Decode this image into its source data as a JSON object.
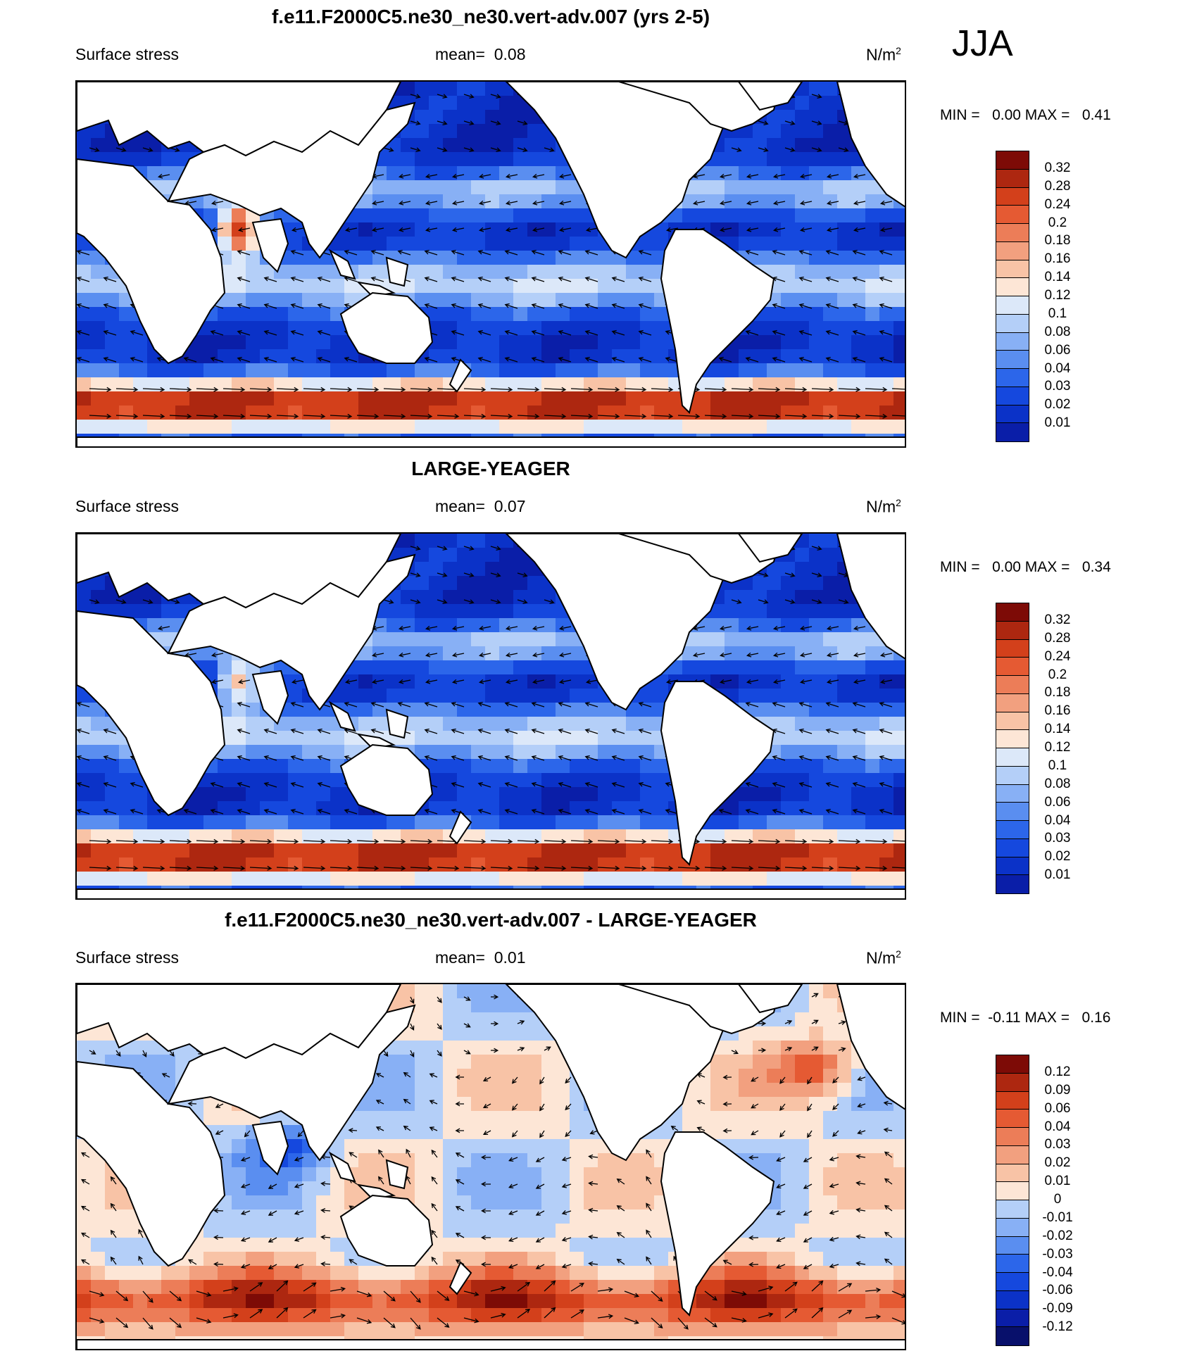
{
  "season": "JJA",
  "colors": {
    "scale_pos": [
      "#08106b",
      "#0a1ea8",
      "#0b32c8",
      "#1548de",
      "#2c66ea",
      "#5a8ef0",
      "#88b0f5",
      "#b4cff8",
      "#dce8f9",
      "#fde6d6",
      "#f8c3a6",
      "#f2a07f",
      "#ec7d58",
      "#e55a33",
      "#d3401b",
      "#ad2710",
      "#7d0b06"
    ],
    "land": "#ffffff",
    "coast": "#000000"
  },
  "panels": [
    {
      "title": "f.e11.F2000C5.ne30_ne30.vert-adv.007 (yrs 2-5)",
      "variable": "Surface stress",
      "mean_label": "mean=",
      "mean_value": "0.08",
      "units": "N/m",
      "units_sup": "2",
      "minmax": "MIN =   0.00 MAX =   0.41",
      "colorbar_labels": [
        "0.32",
        "0.28",
        "0.24",
        "0.2",
        "0.18",
        "0.16",
        "0.14",
        "0.12",
        "0.1",
        "0.08",
        "0.06",
        "0.04",
        "0.03",
        "0.02",
        "0.01"
      ]
    },
    {
      "title": "LARGE-YEAGER",
      "variable": "Surface stress",
      "mean_label": "mean=",
      "mean_value": "0.07",
      "units": "N/m",
      "units_sup": "2",
      "minmax": "MIN =   0.00 MAX =   0.34",
      "colorbar_labels": [
        "0.32",
        "0.28",
        "0.24",
        "0.2",
        "0.18",
        "0.16",
        "0.14",
        "0.12",
        "0.1",
        "0.08",
        "0.06",
        "0.04",
        "0.03",
        "0.02",
        "0.01"
      ]
    },
    {
      "title": "f.e11.F2000C5.ne30_ne30.vert-adv.007 - LARGE-YEAGER",
      "variable": "Surface stress",
      "mean_label": "mean=",
      "mean_value": "0.01",
      "units": "N/m",
      "units_sup": "2",
      "minmax": "MIN =  -0.11 MAX =   0.16",
      "colorbar_labels": [
        "0.12",
        "0.09",
        "0.06",
        "0.04",
        "0.03",
        "0.02",
        "0.01",
        "0",
        "-0.01",
        "-0.02",
        "-0.03",
        "-0.04",
        "-0.06",
        "-0.09",
        "-0.12"
      ]
    }
  ]
}
